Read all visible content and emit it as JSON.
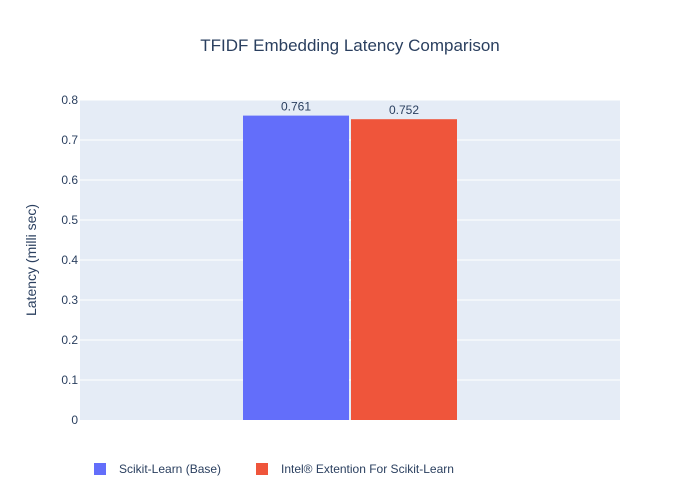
{
  "chart_data": {
    "type": "bar",
    "title": "TFIDF Embedding Latency Comparison",
    "ylabel": "Latency (milli sec)",
    "xlabel": "",
    "ylim": [
      0,
      0.8
    ],
    "yticks": [
      "0",
      "0.1",
      "0.2",
      "0.3",
      "0.4",
      "0.5",
      "0.6",
      "0.7",
      "0.8"
    ],
    "grid": true,
    "legend_position": "bottom-left",
    "series": [
      {
        "name": "Scikit-Learn (Base)",
        "value": 0.761,
        "label": "0.761",
        "color": "#636efa"
      },
      {
        "name": "Intel® Extention For Scikit-Learn",
        "value": 0.752,
        "label": "0.752",
        "color": "#ef553b"
      }
    ]
  },
  "colors": {
    "plot_background": "#e5ecf6",
    "grid": "#ffffff",
    "text": "#2a3f5f"
  }
}
